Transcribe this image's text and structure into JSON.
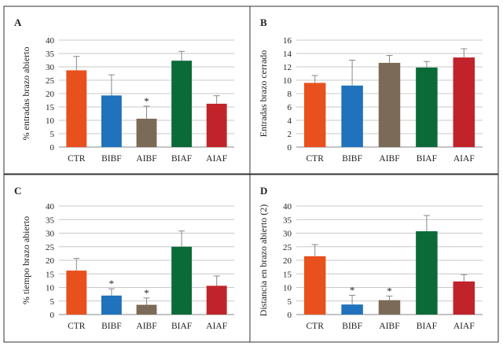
{
  "chart_data": [
    {
      "type": "bar",
      "panel": "A",
      "ylabel": "% entradas brazo abierto",
      "categories": [
        "CTR",
        "BIBF",
        "AIBF",
        "BIAF",
        "AIAF"
      ],
      "values": [
        28.7,
        19.3,
        10.6,
        32.3,
        16.2
      ],
      "errors": [
        5.2,
        7.7,
        4.7,
        3.5,
        3.0
      ],
      "significance": [
        "",
        "",
        "*",
        "",
        ""
      ],
      "ylim": [
        0,
        40
      ],
      "yticks": [
        0,
        5,
        10,
        15,
        20,
        25,
        30,
        35,
        40
      ],
      "grid": true
    },
    {
      "type": "bar",
      "panel": "B",
      "ylabel": "Entradas brazo cerrado",
      "categories": [
        "CTR",
        "BIBF",
        "AIBF",
        "BIAF",
        "AIAF"
      ],
      "values": [
        9.6,
        9.2,
        12.6,
        11.9,
        13.4
      ],
      "errors": [
        1.1,
        3.8,
        1.1,
        0.9,
        1.3
      ],
      "significance": [
        "",
        "",
        "",
        "",
        ""
      ],
      "ylim": [
        0,
        16
      ],
      "yticks": [
        0,
        2,
        4,
        6,
        8,
        10,
        12,
        14,
        16
      ],
      "grid": true
    },
    {
      "type": "bar",
      "panel": "C",
      "ylabel": "% tiempo brazo abierto",
      "categories": [
        "CTR",
        "BIBF",
        "AIBF",
        "BIAF",
        "AIAF"
      ],
      "values": [
        16.2,
        7.0,
        3.6,
        25.0,
        10.6
      ],
      "errors": [
        4.5,
        2.5,
        2.5,
        5.8,
        3.6
      ],
      "significance": [
        "",
        "*",
        "*",
        "",
        ""
      ],
      "ylim": [
        0,
        40
      ],
      "yticks": [
        0,
        5,
        10,
        15,
        20,
        25,
        30,
        35,
        40
      ],
      "grid": true
    },
    {
      "type": "bar",
      "panel": "D",
      "ylabel": "Distancia en brazo abierto (2)",
      "categories": [
        "CTR",
        "BIBF",
        "AIBF",
        "BIAF",
        "AIAF"
      ],
      "values": [
        21.5,
        3.7,
        5.3,
        30.7,
        12.2
      ],
      "errors": [
        4.3,
        3.4,
        1.5,
        5.8,
        2.5
      ],
      "significance": [
        "",
        "*",
        "*",
        "",
        ""
      ],
      "ylim": [
        0,
        40
      ],
      "yticks": [
        0,
        5,
        10,
        15,
        20,
        25,
        30,
        35,
        40
      ],
      "grid": true
    }
  ],
  "colors": {
    "CTR": "#e8501e",
    "BIBF": "#1f72bb",
    "AIBF": "#7c6a58",
    "BIAF": "#0a6a38",
    "AIAF": "#c1232a",
    "grid": "#c8c8c8",
    "axis": "#888888",
    "border": "#333333",
    "error": "#888888"
  }
}
